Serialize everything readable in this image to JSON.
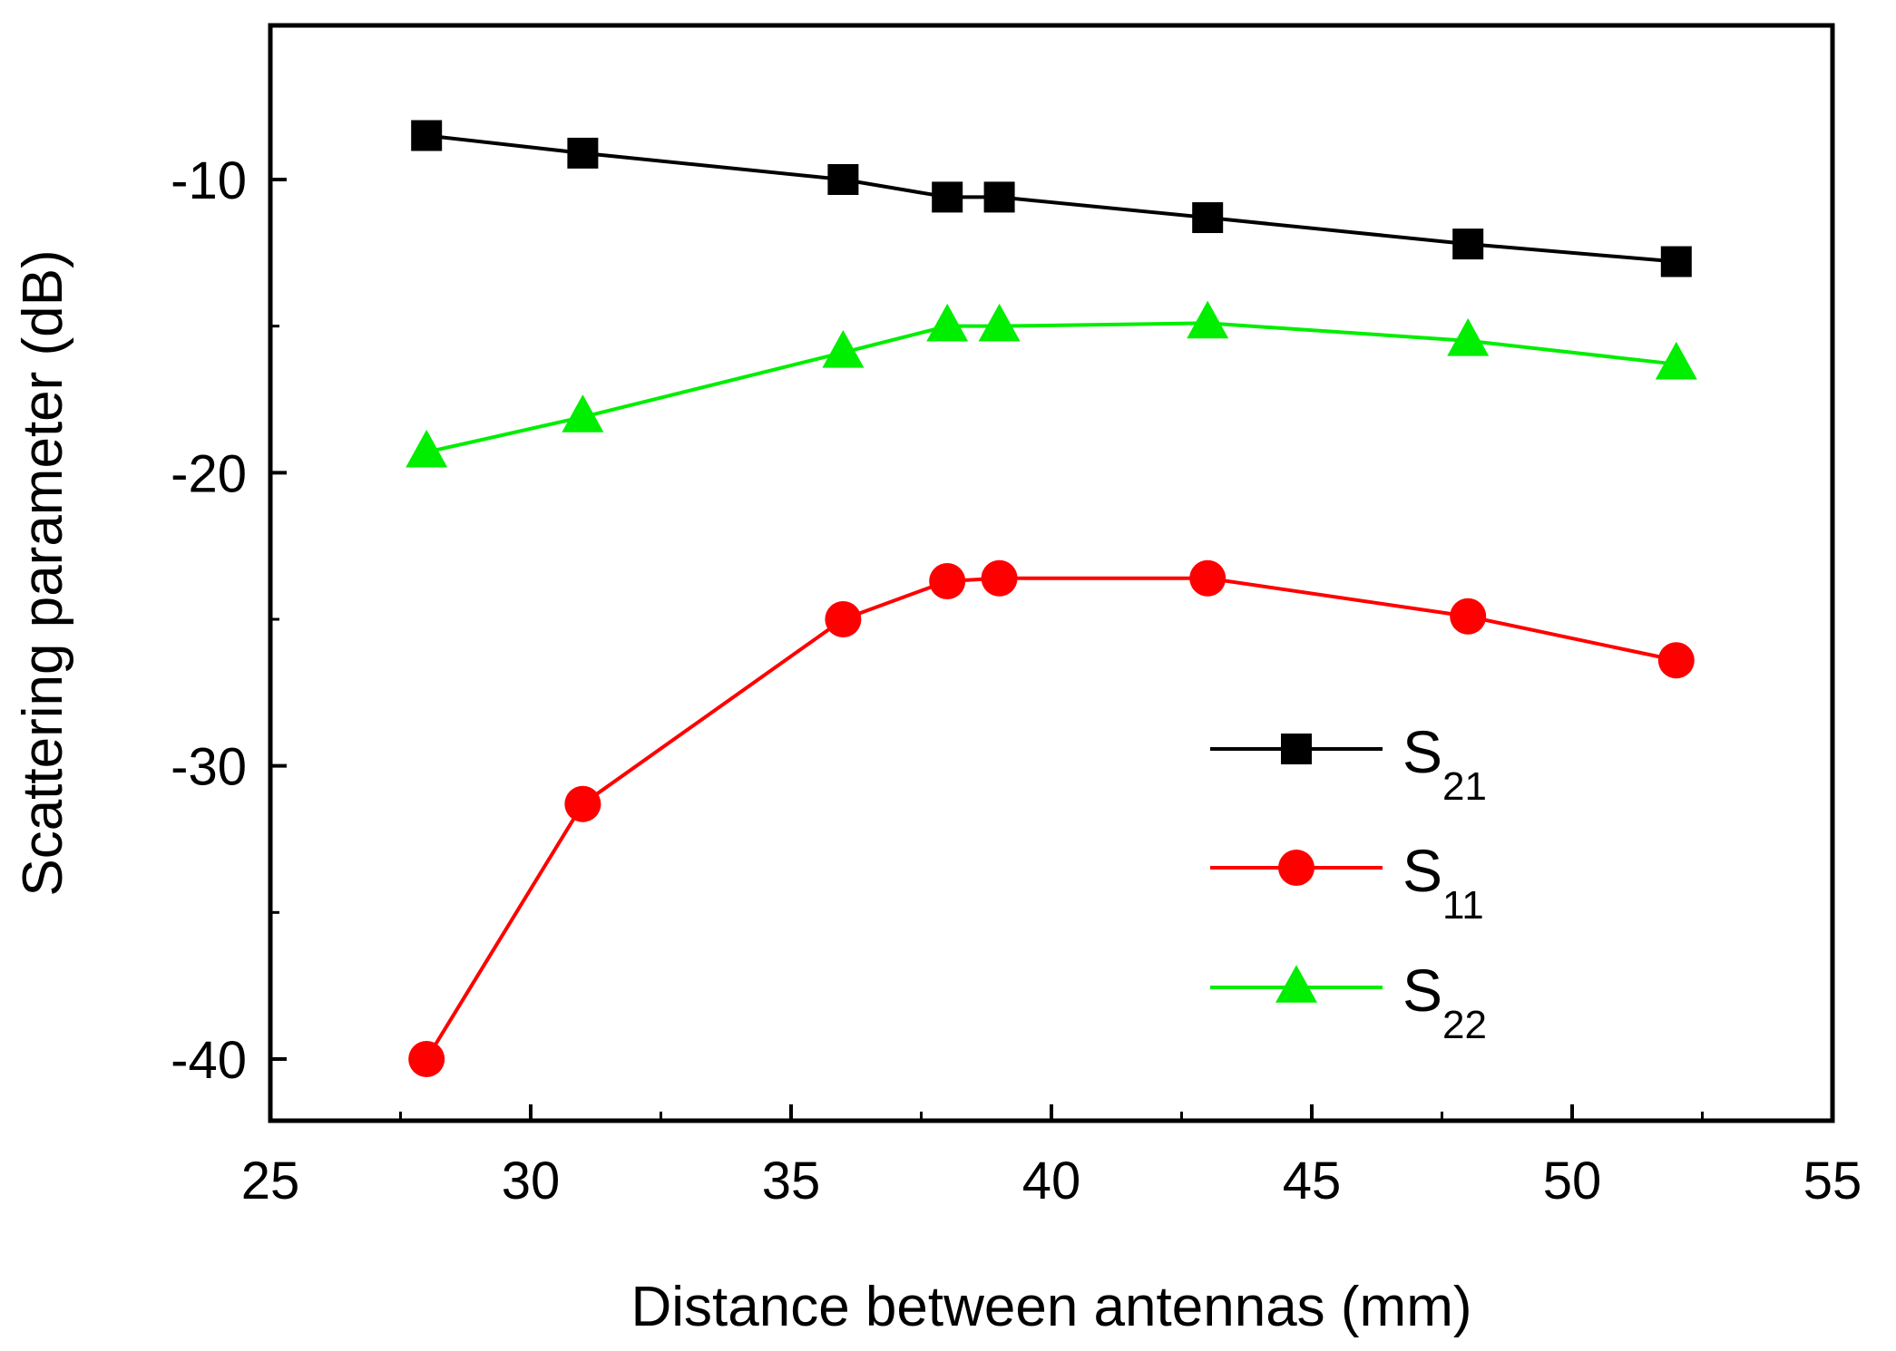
{
  "chart_data": {
    "type": "line",
    "xlabel": "Distance between antennas (mm)",
    "ylabel": "Scattering parameter (dB)",
    "xlim": [
      25,
      55
    ],
    "ylim": [
      -42,
      -5
    ],
    "x_ticks": [
      25,
      30,
      35,
      40,
      45,
      50,
      55
    ],
    "x_tick_labels": [
      "25",
      "30",
      "35",
      "40",
      "45",
      "50",
      "55"
    ],
    "y_ticks": [
      -10,
      -20,
      -30,
      -40
    ],
    "y_tick_labels": [
      "-10",
      "-20",
      "-30",
      "-40"
    ],
    "grid": false,
    "legend_position": "right-middle",
    "x": [
      28,
      31,
      36,
      38,
      39,
      43,
      48,
      52
    ],
    "series": [
      {
        "name": "S21",
        "label_main": "S",
        "label_sub": "21",
        "marker": "square",
        "color": "#000000",
        "values": [
          -8.5,
          -9.1,
          -10.0,
          -10.6,
          -10.6,
          -11.3,
          -12.2,
          -12.8
        ]
      },
      {
        "name": "S11",
        "label_main": "S",
        "label_sub": "11",
        "marker": "circle",
        "color": "#ff0000",
        "values": [
          -40.0,
          -31.3,
          -25.0,
          -23.7,
          -23.6,
          -23.6,
          -24.9,
          -26.4
        ]
      },
      {
        "name": "S22",
        "label_main": "S",
        "label_sub": "22",
        "marker": "triangle",
        "color": "#00ee00",
        "values": [
          -19.3,
          -18.1,
          -15.9,
          -15.0,
          -15.0,
          -14.9,
          -15.5,
          -16.3
        ]
      }
    ]
  }
}
